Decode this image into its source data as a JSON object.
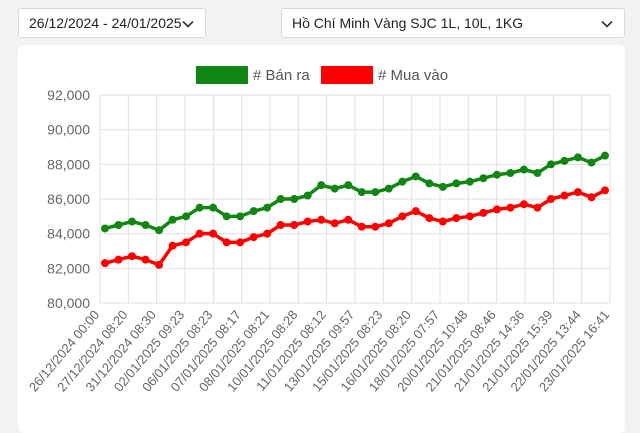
{
  "controls": {
    "date_range": "26/12/2024 - 24/01/2025",
    "product": "Hồ Chí Minh Vàng SJC 1L, 10L, 1KG",
    "dropdown_icon": "chevron-down-icon"
  },
  "chart_data": {
    "type": "line",
    "ylim": [
      80000,
      92000
    ],
    "yticks": [
      "92,000",
      "90,000",
      "88,000",
      "86,000",
      "84,000",
      "82,000",
      "80,000"
    ],
    "grid": true,
    "legend_position": "top-center",
    "x_tick_labels": [
      "26/12/2024 00:00",
      "27/12/2024 08:20",
      "31/12/2024 08:30",
      "02/01/2025 09:23",
      "06/01/2025 08:23",
      "07/01/2025 08:17",
      "08/01/2025 08:21",
      "10/01/2025 08:28",
      "11/01/2025 08:12",
      "13/01/2025 09:57",
      "15/01/2025 08:23",
      "16/01/2025 08:20",
      "18/01/2025 07:57",
      "20/01/2025 10:48",
      "21/01/2025 08:46",
      "21/01/2025 14:36",
      "21/01/2025 15:39",
      "22/01/2025 13:44",
      "23/01/2025 16:41"
    ],
    "series": [
      {
        "name": "# Bán ra",
        "color": "#128612",
        "values": [
          84300,
          84500,
          84700,
          84500,
          84200,
          84800,
          85000,
          85500,
          85500,
          85000,
          85000,
          85300,
          85500,
          86000,
          86000,
          86200,
          86800,
          86600,
          86800,
          86400,
          86400,
          86600,
          87000,
          87300,
          86900,
          86700,
          86900,
          87000,
          87200,
          87400,
          87500,
          87700,
          87500,
          88000,
          88200,
          88400,
          88100,
          88500
        ]
      },
      {
        "name": "# Mua vào",
        "color": "#ff0000",
        "values": [
          82300,
          82500,
          82700,
          82500,
          82200,
          83300,
          83500,
          84000,
          84000,
          83500,
          83500,
          83800,
          84000,
          84500,
          84500,
          84700,
          84800,
          84600,
          84800,
          84400,
          84400,
          84600,
          85000,
          85300,
          84900,
          84700,
          84900,
          85000,
          85200,
          85400,
          85500,
          85700,
          85500,
          86000,
          86200,
          86400,
          86100,
          86500
        ]
      }
    ]
  }
}
